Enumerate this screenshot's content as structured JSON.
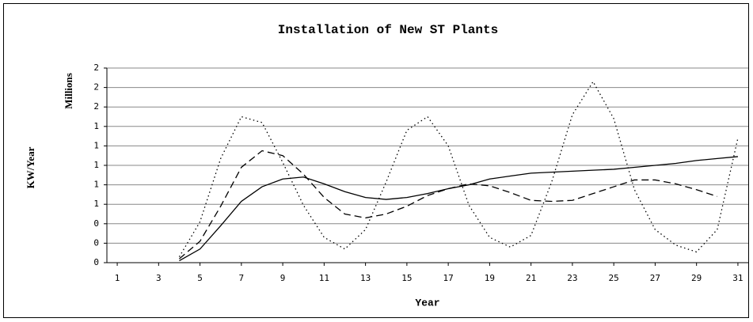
{
  "chart_data": {
    "type": "line",
    "title": "Installation of New ST Plants",
    "x_label": "Year",
    "y_label": "KW/Year",
    "y_unit_label": "Millions",
    "x": [
      1,
      2,
      3,
      4,
      5,
      6,
      7,
      8,
      9,
      10,
      11,
      12,
      13,
      14,
      15,
      16,
      17,
      18,
      19,
      20,
      21,
      22,
      23,
      24,
      25,
      26,
      27,
      28,
      29,
      30,
      31
    ],
    "xlim": [
      0.5,
      31.5
    ],
    "xticks": [
      1,
      3,
      5,
      7,
      9,
      11,
      13,
      15,
      17,
      19,
      21,
      23,
      25,
      27,
      29,
      31
    ],
    "ylim": [
      0,
      2
    ],
    "yticks": [
      0,
      {
        "value": 0.2,
        "label": "0"
      },
      {
        "value": 0.4,
        "label": "0"
      },
      {
        "value": 0.6,
        "label": "1"
      },
      {
        "value": 0.8,
        "label": "1"
      },
      1,
      {
        "value": 1.2,
        "label": "1"
      },
      {
        "value": 1.4,
        "label": "1"
      },
      {
        "value": 1.6,
        "label": "2"
      },
      {
        "value": 1.8,
        "label": "2"
      },
      2
    ],
    "grid": true,
    "series": [
      {
        "color": "#000000",
        "dash": "solid",
        "values": [
          null,
          null,
          null,
          0.02,
          0.14,
          0.38,
          0.63,
          0.78,
          0.86,
          0.88,
          0.81,
          0.73,
          0.67,
          0.65,
          0.67,
          0.71,
          0.76,
          0.8,
          0.86,
          0.89,
          0.92,
          0.93,
          0.94,
          0.95,
          0.96,
          0.98,
          1.0,
          1.02,
          1.05,
          1.07,
          1.09
        ]
      },
      {
        "color": "#000000",
        "dash": "dashed",
        "values": [
          null,
          null,
          null,
          0.04,
          0.22,
          0.58,
          0.98,
          1.15,
          1.1,
          0.91,
          0.67,
          0.5,
          0.46,
          0.5,
          0.58,
          0.69,
          0.76,
          0.81,
          0.79,
          0.72,
          0.64,
          0.63,
          0.64,
          0.71,
          0.78,
          0.85,
          0.85,
          0.81,
          0.75,
          0.68,
          null
        ]
      },
      {
        "color": "#000000",
        "dash": "dotted",
        "values": [
          null,
          null,
          null,
          0.06,
          0.42,
          1.07,
          1.5,
          1.44,
          1.03,
          0.59,
          0.26,
          0.14,
          0.34,
          0.83,
          1.36,
          1.5,
          1.2,
          0.59,
          0.26,
          0.16,
          0.28,
          0.83,
          1.52,
          1.86,
          1.48,
          0.75,
          0.34,
          0.18,
          0.11,
          0.34,
          1.28
        ]
      }
    ]
  }
}
